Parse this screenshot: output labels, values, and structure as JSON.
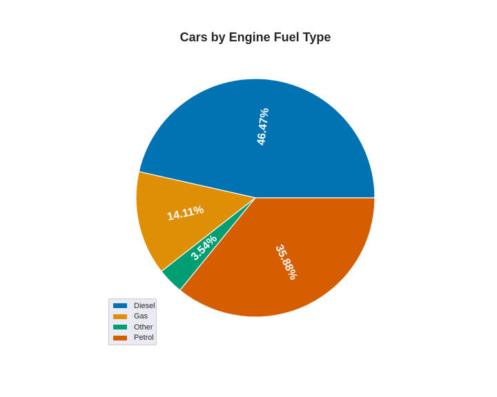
{
  "chart_data": {
    "type": "pie",
    "title": "Cars by Engine Fuel Type",
    "slices": [
      {
        "label": "Diesel",
        "value": 46.47,
        "pct_label": "46.47%",
        "color": "#0173b2"
      },
      {
        "label": "Gas",
        "value": 14.11,
        "pct_label": "14.11%",
        "color": "#de8f05"
      },
      {
        "label": "Other",
        "value": 3.54,
        "pct_label": "3.54%",
        "color": "#029e73"
      },
      {
        "label": "Petrol",
        "value": 35.88,
        "pct_label": "35.88%",
        "color": "#d55e00"
      }
    ],
    "start_angle_deg": 0,
    "direction": "counterclockwise",
    "legend": {
      "placement": "lower-left",
      "entries": [
        "Diesel",
        "Gas",
        "Other",
        "Petrol"
      ]
    }
  }
}
